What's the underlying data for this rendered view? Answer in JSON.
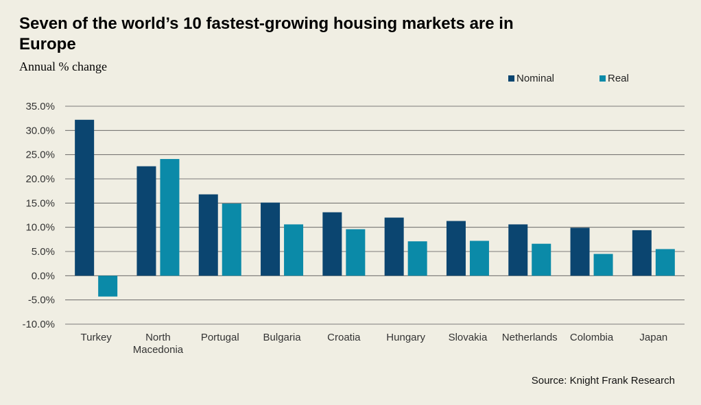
{
  "chart_data": {
    "type": "bar",
    "title": "Seven of the world’s 10 fastest-growing housing markets are in Europe",
    "subtitle": "Annual % change",
    "categories": [
      "Turkey",
      "North Macedonia",
      "Portugal",
      "Bulgaria",
      "Croatia",
      "Hungary",
      "Slovakia",
      "Netherlands",
      "Colombia",
      "Japan"
    ],
    "category_lines": [
      [
        "Turkey"
      ],
      [
        "North",
        "Macedonia"
      ],
      [
        "Portugal"
      ],
      [
        "Bulgaria"
      ],
      [
        "Croatia"
      ],
      [
        "Hungary"
      ],
      [
        "Slovakia"
      ],
      [
        "Netherlands"
      ],
      [
        "Colombia"
      ],
      [
        "Japan"
      ]
    ],
    "series": [
      {
        "name": "Nominal",
        "color": "#0b4570",
        "values": [
          32.2,
          22.6,
          16.8,
          15.1,
          13.1,
          12.0,
          11.3,
          10.6,
          9.9,
          9.4
        ]
      },
      {
        "name": "Real",
        "color": "#0b8aa8",
        "values": [
          -4.3,
          24.1,
          14.9,
          10.6,
          9.6,
          7.1,
          7.2,
          6.6,
          4.5,
          5.5
        ]
      }
    ],
    "ylim": [
      -10,
      35
    ],
    "yticks": [
      -10,
      -5,
      0,
      5,
      10,
      15,
      20,
      25,
      30,
      35
    ],
    "ytick_labels": [
      "-10.0%",
      "-5.0%",
      "0.0%",
      "5.0%",
      "10.0%",
      "15.0%",
      "20.0%",
      "25.0%",
      "30.0%",
      "35.0%"
    ],
    "grid": true,
    "legend_position": "top-right",
    "source": "Source: Knight Frank Research"
  }
}
